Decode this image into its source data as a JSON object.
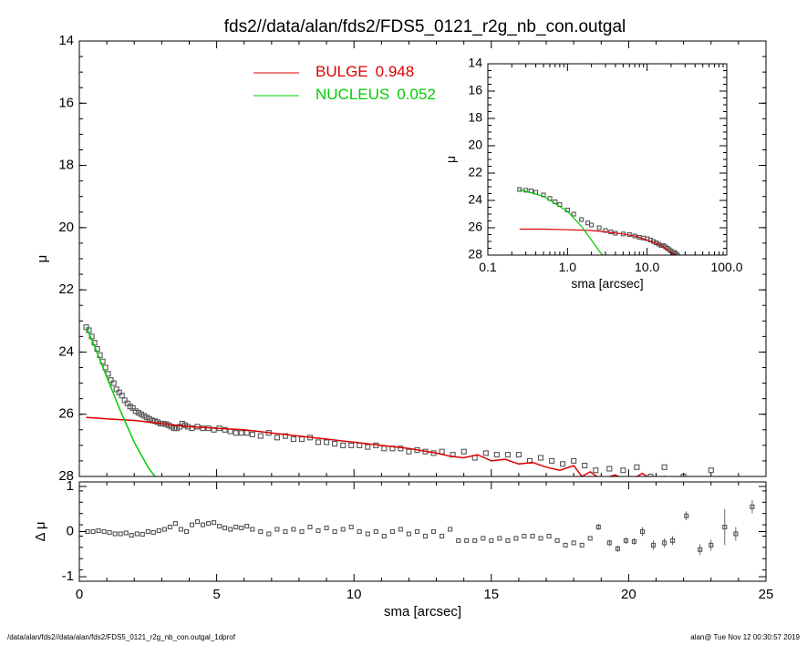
{
  "title": "fds2//data/alan/fds2/FDS5_0121_r2g_nb_con.outgal",
  "footer_left": "/data/alan/fds2//data/alan/fds2/FDS5_0121_r2g_nb_con.outgal_1dprof",
  "footer_right": "alan@  Tue Nov 12 00:30:57 2019",
  "colors": {
    "bulge": "#dd0000",
    "nucleus": "#00cc00",
    "data": "#555555",
    "axes": "#000000"
  },
  "chart_data": [
    {
      "id": "main",
      "type": "scatter",
      "ylabel": "μ",
      "xlim": [
        0,
        25
      ],
      "ylim": [
        28,
        14
      ],
      "yticks": [
        "14",
        "16",
        "18",
        "20",
        "22",
        "24",
        "26",
        "28"
      ],
      "legend": {
        "placement": "top-center",
        "entries": [
          {
            "label": "BULGE",
            "value": "0.948",
            "color": "#dd0000"
          },
          {
            "label": "NUCLEUS",
            "value": "0.052",
            "color": "#00cc00"
          }
        ]
      },
      "series": [
        {
          "kind": "data",
          "x": [
            0.25,
            0.35,
            0.45,
            0.55,
            0.65,
            0.75,
            0.85,
            0.95,
            1.05,
            1.15,
            1.25,
            1.35,
            1.45,
            1.55,
            1.65,
            1.75,
            1.85,
            1.95,
            2.05,
            2.15,
            2.25,
            2.35,
            2.45,
            2.55,
            2.65,
            2.75,
            2.85,
            2.95,
            3.05,
            3.15,
            3.25,
            3.35,
            3.45,
            3.55,
            3.65,
            3.75,
            3.85,
            3.95,
            4.1,
            4.3,
            4.5,
            4.7,
            4.9,
            5.1,
            5.3,
            5.5,
            5.7,
            5.9,
            6.1,
            6.3,
            6.6,
            6.9,
            7.2,
            7.5,
            7.8,
            8.1,
            8.4,
            8.7,
            9.0,
            9.3,
            9.6,
            9.9,
            10.2,
            10.5,
            10.8,
            11.1,
            11.4,
            11.7,
            12.0,
            12.3,
            12.6,
            12.9,
            13.2,
            13.6,
            14.0,
            14.4,
            14.8,
            15.2,
            15.6,
            16.0,
            16.4,
            16.8,
            17.2,
            17.6,
            18.0,
            18.4,
            18.8,
            19.3,
            19.8,
            20.3,
            20.8,
            21.3,
            22.0,
            23.0
          ],
          "y": [
            23.2,
            23.3,
            23.5,
            23.7,
            23.9,
            24.1,
            24.3,
            24.5,
            24.7,
            24.9,
            25.0,
            25.2,
            25.3,
            25.4,
            25.55,
            25.65,
            25.75,
            25.8,
            25.9,
            25.95,
            26.0,
            26.05,
            26.1,
            26.15,
            26.2,
            26.22,
            26.25,
            26.3,
            26.3,
            26.32,
            26.35,
            26.4,
            26.45,
            26.45,
            26.4,
            26.3,
            26.35,
            26.4,
            26.45,
            26.4,
            26.45,
            26.45,
            26.5,
            26.45,
            26.5,
            26.55,
            26.6,
            26.6,
            26.6,
            26.65,
            26.7,
            26.6,
            26.75,
            26.7,
            26.8,
            26.8,
            26.75,
            26.9,
            26.9,
            26.95,
            27.0,
            27.0,
            27.0,
            27.05,
            27.0,
            27.1,
            27.1,
            27.1,
            27.2,
            27.15,
            27.2,
            27.25,
            27.2,
            27.3,
            27.2,
            27.4,
            27.25,
            27.3,
            27.3,
            27.3,
            27.5,
            27.4,
            27.5,
            27.6,
            27.5,
            27.65,
            27.8,
            27.75,
            27.8,
            27.7,
            28.0,
            27.7,
            28.0,
            27.8
          ]
        },
        {
          "kind": "line",
          "name": "BULGE",
          "color": "#dd0000",
          "x": [
            0.25,
            1,
            2,
            3,
            4,
            5,
            6,
            7,
            8,
            9,
            10,
            11,
            12,
            13,
            13.5,
            14,
            14.5,
            15,
            15.5,
            16,
            16.5,
            17,
            17.5,
            18,
            18.3,
            18.6,
            19,
            19.5,
            20,
            20.5,
            21,
            21.3,
            21.6,
            22
          ],
          "y": [
            26.1,
            26.15,
            26.2,
            26.3,
            26.4,
            26.45,
            26.5,
            26.6,
            26.7,
            26.8,
            26.9,
            27.0,
            27.1,
            27.25,
            27.35,
            27.4,
            27.3,
            27.5,
            27.45,
            27.6,
            27.55,
            27.7,
            27.8,
            27.65,
            28.0,
            27.85,
            28.1,
            27.95,
            28.15,
            27.9,
            28.2,
            28.0,
            28.25,
            28.3
          ]
        },
        {
          "kind": "line",
          "name": "NUCLEUS",
          "color": "#00cc00",
          "x": [
            0.25,
            0.5,
            1.0,
            1.5,
            2.0,
            2.5,
            2.75
          ],
          "y": [
            23.2,
            23.7,
            24.8,
            25.9,
            26.9,
            27.7,
            28.0
          ]
        }
      ]
    },
    {
      "id": "inset",
      "type": "scatter",
      "xlabel": "sma [arcsec]",
      "ylabel": "μ",
      "xscale": "log",
      "xlim": [
        0.1,
        100
      ],
      "ylim": [
        28,
        14
      ],
      "xticks": [
        "0.1",
        "1.0",
        "10.0",
        "100.0"
      ],
      "yticks": [
        "14",
        "16",
        "18",
        "20",
        "22",
        "24",
        "26",
        "28"
      ],
      "series": [
        {
          "kind": "data",
          "x": [
            0.25,
            0.3,
            0.35,
            0.4,
            0.5,
            0.6,
            0.7,
            0.8,
            1.0,
            1.2,
            1.5,
            1.8,
            2.0,
            2.5,
            3.0,
            3.5,
            4.0,
            5.0,
            6.0,
            7.0,
            8.0,
            9.0,
            10.0,
            11.0,
            12.0,
            13.0,
            14.0,
            15.0,
            16.0,
            17.0,
            18.0,
            19.0,
            20.0,
            21.0,
            22.0,
            23.0,
            24.0
          ],
          "y": [
            23.2,
            23.25,
            23.3,
            23.4,
            23.6,
            23.85,
            24.1,
            24.3,
            24.7,
            25.0,
            25.4,
            25.65,
            25.8,
            26.0,
            26.2,
            26.3,
            26.4,
            26.45,
            26.5,
            26.6,
            26.7,
            26.75,
            26.8,
            26.9,
            27.0,
            27.1,
            27.2,
            27.3,
            27.3,
            27.4,
            27.5,
            27.6,
            27.7,
            27.8,
            27.8,
            27.9,
            28.0
          ]
        },
        {
          "kind": "line",
          "name": "BULGE",
          "color": "#dd0000",
          "x": [
            0.25,
            0.5,
            1.0,
            2.0,
            3.0,
            5.0,
            7.0,
            10.0,
            15.0,
            20.0,
            24.0
          ],
          "y": [
            26.1,
            26.1,
            26.15,
            26.2,
            26.3,
            26.45,
            26.6,
            26.9,
            27.3,
            27.8,
            28.1
          ]
        },
        {
          "kind": "line",
          "name": "NUCLEUS",
          "color": "#00cc00",
          "x": [
            0.25,
            0.5,
            1.0,
            1.5,
            2.0,
            2.5,
            2.75
          ],
          "y": [
            23.2,
            23.7,
            24.8,
            25.9,
            26.9,
            27.7,
            28.0
          ]
        }
      ]
    },
    {
      "id": "residual",
      "type": "scatter",
      "xlabel": "sma [arcsec]",
      "ylabel": "Δ μ",
      "xlim": [
        0,
        25
      ],
      "ylim": [
        -1.1,
        1.1
      ],
      "xticks": [
        "0",
        "5",
        "10",
        "15",
        "20",
        "25"
      ],
      "yticks": [
        "1",
        "0",
        "-1"
      ],
      "series": [
        {
          "kind": "data",
          "x": [
            0.3,
            0.5,
            0.7,
            0.9,
            1.1,
            1.3,
            1.5,
            1.7,
            1.9,
            2.1,
            2.3,
            2.5,
            2.7,
            2.9,
            3.1,
            3.3,
            3.5,
            3.7,
            3.9,
            4.1,
            4.3,
            4.5,
            4.7,
            4.9,
            5.1,
            5.3,
            5.5,
            5.7,
            5.9,
            6.1,
            6.3,
            6.6,
            6.9,
            7.2,
            7.5,
            7.8,
            8.1,
            8.4,
            8.7,
            9.0,
            9.3,
            9.6,
            9.9,
            10.2,
            10.5,
            10.8,
            11.1,
            11.4,
            11.7,
            12.0,
            12.3,
            12.6,
            12.9,
            13.2,
            13.5,
            13.8,
            14.1,
            14.4,
            14.7,
            15.0,
            15.3,
            15.6,
            15.9,
            16.2,
            16.5,
            16.8,
            17.1,
            17.4,
            17.7,
            18.0,
            18.3,
            18.6,
            18.9,
            19.3,
            19.6,
            19.9,
            20.2,
            20.5,
            20.9,
            21.3,
            21.6,
            22.1,
            22.6,
            23.0,
            23.5,
            23.9,
            24.5
          ],
          "y": [
            0.0,
            0.0,
            0.02,
            0.0,
            -0.02,
            -0.05,
            -0.05,
            -0.03,
            -0.08,
            -0.05,
            -0.06,
            0.0,
            -0.02,
            0.02,
            0.05,
            0.1,
            0.18,
            0.05,
            0.0,
            0.15,
            0.22,
            0.15,
            0.18,
            0.2,
            0.12,
            0.08,
            0.05,
            0.1,
            0.08,
            0.12,
            0.05,
            0.0,
            -0.05,
            0.05,
            0.0,
            0.05,
            0.0,
            0.1,
            0.02,
            0.08,
            0.0,
            0.05,
            0.1,
            0.0,
            -0.05,
            0.0,
            -0.1,
            0.0,
            0.05,
            -0.05,
            0.0,
            -0.1,
            0.0,
            -0.1,
            0.05,
            -0.2,
            -0.2,
            -0.2,
            -0.15,
            -0.2,
            -0.15,
            -0.2,
            -0.15,
            -0.1,
            -0.1,
            -0.15,
            -0.1,
            -0.2,
            -0.3,
            -0.25,
            -0.3,
            -0.15,
            0.1,
            -0.25,
            -0.38,
            -0.2,
            -0.22,
            0.0,
            -0.3,
            -0.25,
            -0.2,
            0.35,
            -0.4,
            -0.3,
            0.1,
            -0.05,
            0.55
          ],
          "err": [
            0,
            0,
            0,
            0,
            0,
            0,
            0,
            0,
            0,
            0,
            0,
            0,
            0,
            0,
            0,
            0,
            0,
            0,
            0,
            0,
            0,
            0,
            0,
            0,
            0,
            0,
            0,
            0,
            0,
            0,
            0,
            0,
            0,
            0,
            0,
            0,
            0,
            0,
            0,
            0,
            0,
            0,
            0,
            0,
            0,
            0,
            0,
            0,
            0,
            0,
            0,
            0,
            0,
            0,
            0,
            0,
            0,
            0,
            0,
            0,
            0,
            0,
            0,
            0,
            0,
            0,
            0,
            0,
            0,
            0,
            0,
            0,
            0.07,
            0.07,
            0.07,
            0.07,
            0.07,
            0.1,
            0.1,
            0.1,
            0.1,
            0.1,
            0.12,
            0.12,
            0.4,
            0.15,
            0.15
          ]
        }
      ]
    }
  ]
}
